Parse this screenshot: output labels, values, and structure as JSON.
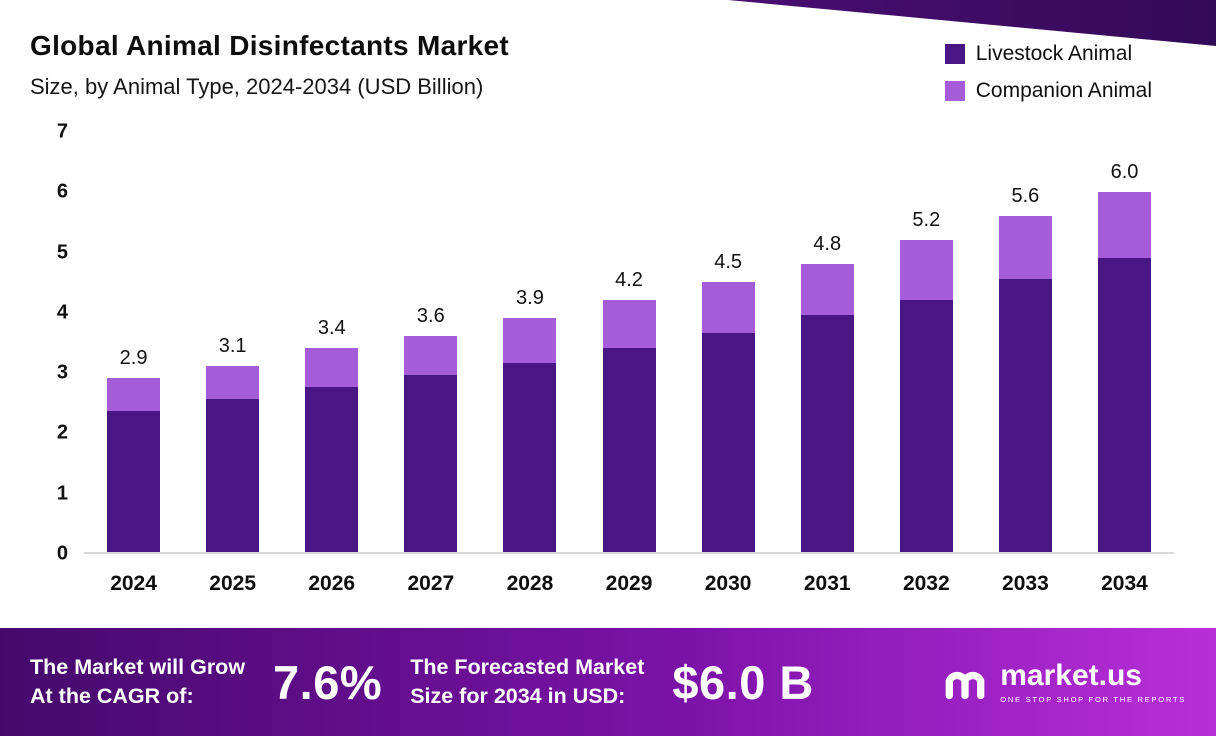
{
  "header": {
    "title": "Global Animal Disinfectants Market",
    "subtitle": "Size, by Animal Type, 2024-2034 (USD Billion)"
  },
  "chart_data": {
    "type": "bar",
    "stacked": true,
    "title": "Global Animal Disinfectants Market Size, by Animal Type, 2024-2034 (USD Billion)",
    "categories": [
      "2024",
      "2025",
      "2026",
      "2027",
      "2028",
      "2029",
      "2030",
      "2031",
      "2032",
      "2033",
      "2034"
    ],
    "series": [
      {
        "name": "Livestock Animal",
        "color": "#4a1686",
        "values": [
          2.35,
          2.55,
          2.75,
          2.95,
          3.15,
          3.4,
          3.65,
          3.95,
          4.2,
          4.55,
          4.9
        ]
      },
      {
        "name": "Companion Animal",
        "color": "#a55cd9",
        "values": [
          0.55,
          0.55,
          0.65,
          0.65,
          0.75,
          0.8,
          0.85,
          0.85,
          1.0,
          1.05,
          1.1
        ]
      }
    ],
    "totals": [
      2.9,
      3.1,
      3.4,
      3.6,
      3.9,
      4.2,
      4.5,
      4.8,
      5.2,
      5.6,
      6.0
    ],
    "total_labels": [
      "2.9",
      "3.1",
      "3.4",
      "3.6",
      "3.9",
      "4.2",
      "4.5",
      "4.8",
      "5.2",
      "5.6",
      "6.0"
    ],
    "ylim": [
      0,
      7
    ],
    "yticks": [
      0,
      1,
      2,
      3,
      4,
      5,
      6,
      7
    ],
    "xlabel": "",
    "ylabel": "",
    "grid": false,
    "legend_position": "top-right"
  },
  "banner": {
    "cagr_label_line1": "The Market will Grow",
    "cagr_label_line2": "At the CAGR of:",
    "cagr_value": "7.6%",
    "forecast_label_line1": "The Forecasted Market",
    "forecast_label_line2": "Size for 2034 in USD:",
    "forecast_value": "$6.0 B",
    "logo_text": "market.us",
    "logo_tagline": "ONE STOP SHOP FOR THE REPORTS"
  },
  "colors": {
    "livestock": "#4a1686",
    "companion": "#a55cd9",
    "banner_gradient_start": "#45096b",
    "banner_gradient_end": "#b82fd9",
    "corner_ribbon": "#4a0e72",
    "axis_line": "#d8d8d8"
  }
}
